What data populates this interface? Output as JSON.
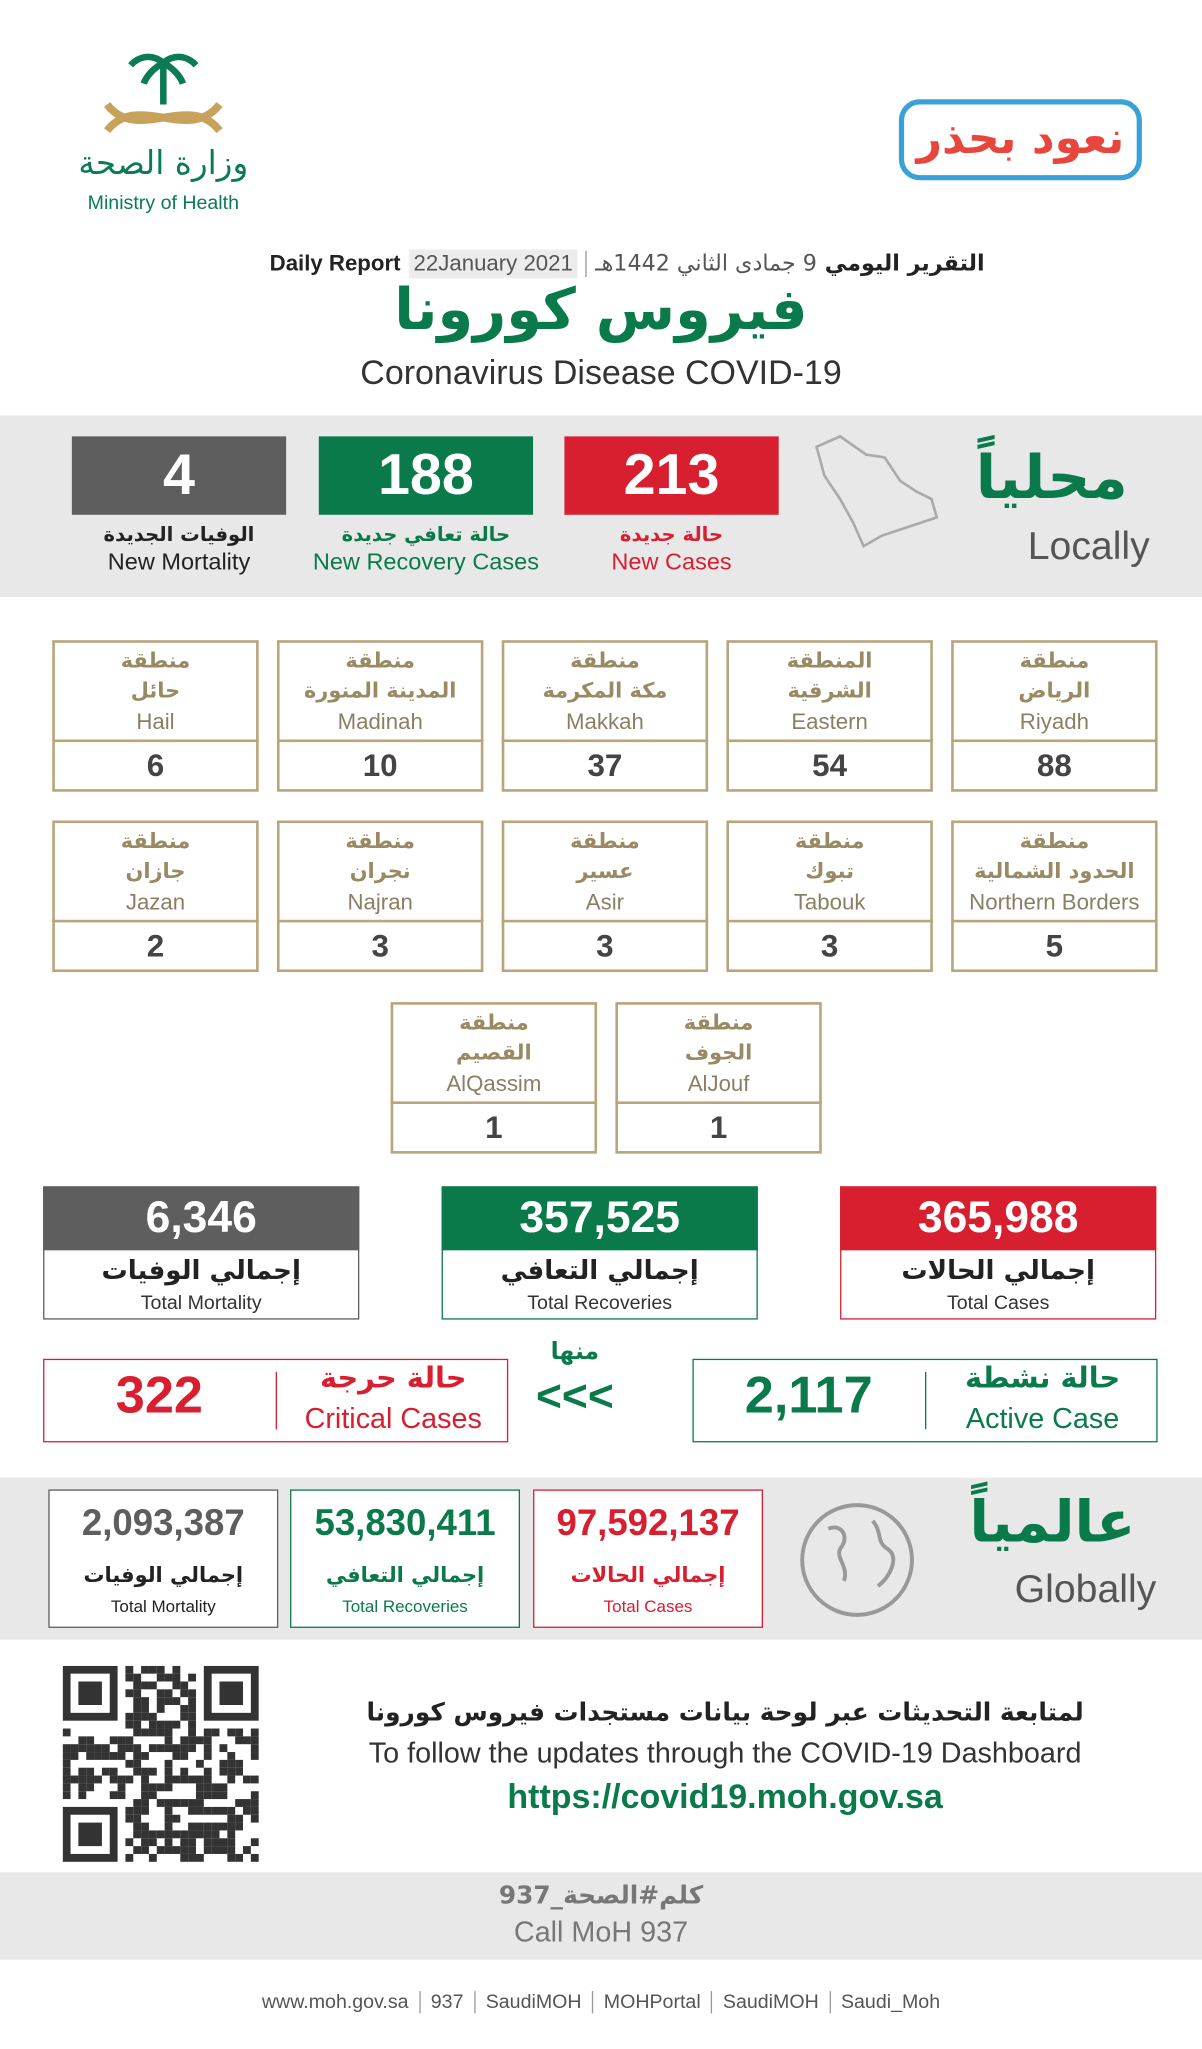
{
  "header": {
    "ministry_ar": "وزارة الصحة",
    "ministry_en": "Ministry of Health",
    "campaign": "نعود بحذر",
    "report_ar": "التقرير اليومي",
    "hijri_date": "9 جمادى الثاني 1442هـ",
    "gregorian_date": "22January 2021",
    "report_en": "Daily Report",
    "title": "فيروس كورونا",
    "subtitle": "Coronavirus Disease COVID-19"
  },
  "local": {
    "title_ar": "محلياً",
    "title_en": "Locally",
    "stats": [
      {
        "value": 213,
        "label_ar": "حالة جديدة",
        "label_en": "New Cases"
      },
      {
        "value": 188,
        "label_ar": "حالة تعافي جديدة",
        "label_en": "New Recovery Cases"
      },
      {
        "value": 4,
        "label_ar": "الوفيات الجديدة",
        "label_en": "New Mortality"
      }
    ]
  },
  "regions": [
    {
      "ar": [
        "منطقة",
        "الرياض"
      ],
      "en": "Riyadh",
      "value": 88
    },
    {
      "ar": [
        "المنطقة",
        "الشرقية"
      ],
      "en": "Eastern",
      "value": 54
    },
    {
      "ar": [
        "منطقة",
        "مكة المكرمة"
      ],
      "en": "Makkah",
      "value": 37
    },
    {
      "ar": [
        "منطقة",
        "المدينة المنورة"
      ],
      "en": "Madinah",
      "value": 10
    },
    {
      "ar": [
        "منطقة",
        "حائل"
      ],
      "en": "Hail",
      "value": 6
    },
    {
      "ar": [
        "منطقة",
        "الحدود الشمالية"
      ],
      "en": "Northern Borders",
      "value": 5
    },
    {
      "ar": [
        "منطقة",
        "تبوك"
      ],
      "en": "Tabouk",
      "value": 3
    },
    {
      "ar": [
        "منطقة",
        "عسير"
      ],
      "en": "Asir",
      "value": 3
    },
    {
      "ar": [
        "منطقة",
        "نجران"
      ],
      "en": "Najran",
      "value": 3
    },
    {
      "ar": [
        "منطقة",
        "جازان"
      ],
      "en": "Jazan",
      "value": 2
    },
    {
      "ar": [
        "منطقة",
        "الجوف"
      ],
      "en": "AlJouf",
      "value": 1
    },
    {
      "ar": [
        "منطقة",
        "القصيم"
      ],
      "en": "AlQassim",
      "value": 1
    }
  ],
  "totals": [
    {
      "value": "365,988",
      "label_ar": "إجمالي الحالات",
      "label_en": "Total Cases"
    },
    {
      "value": "357,525",
      "label_ar": "إجمالي التعافي",
      "label_en": "Total Recoveries"
    },
    {
      "value": "6,346",
      "label_ar": "إجمالي الوفيات",
      "label_en": "Total Mortality"
    }
  ],
  "of_which": "منها",
  "arrows": "<<<",
  "active": {
    "value": "2,117",
    "label_ar": "حالة نشطة",
    "label_en": "Active Case"
  },
  "critical": {
    "value": 322,
    "label_ar": "حالة حرجة",
    "label_en": "Critical Cases"
  },
  "global": {
    "title_ar": "عالمياً",
    "title_en": "Globally",
    "stats": [
      {
        "value": "97,592,137",
        "label_ar": "إجمالي الحالات",
        "label_en": "Total Cases"
      },
      {
        "value": "53,830,411",
        "label_ar": "إجمالي التعافي",
        "label_en": "Total Recoveries"
      },
      {
        "value": "2,093,387",
        "label_ar": "إجمالي الوفيات",
        "label_en": "Total Mortality"
      }
    ]
  },
  "dashboard": {
    "ar": "لمتابعة التحديثات عبر لوحة بيانات مستجدات فيروس كورونا",
    "en": "To follow the updates through the COVID-19 Dashboard",
    "url": "https://covid19.moh.gov.sa"
  },
  "call": {
    "ar": "كلم#الصحة_937",
    "en": "Call MoH 937"
  },
  "footer": [
    "www.moh.gov.sa",
    "937",
    "SaudiMOH",
    "MOHPortal",
    "SaudiMOH",
    "Saudi_Moh"
  ]
}
